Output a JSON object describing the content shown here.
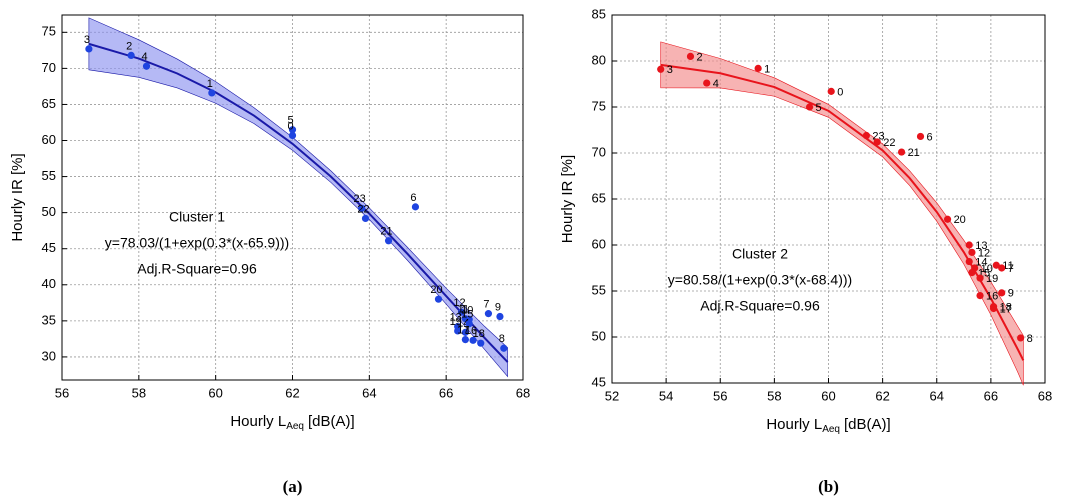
{
  "chart_data": [
    {
      "type": "scatter",
      "panel_label": "(a)",
      "xlabel": "Hourly L",
      "xlabel_sub": "Aeq",
      "xlabel_unit": "[dB(A)]",
      "ylabel": "Hourly IR [%]",
      "annotations": [
        "Cluster 1",
        "y=78.03/(1+exp(0.3*(x-65.9)))",
        "Adj.R-Square=0.96"
      ],
      "color": "#1f44e0",
      "fit_color": "#1a1aa8",
      "band_color": "#8e93f0",
      "xlim": [
        56,
        68
      ],
      "xticks": [
        56,
        58,
        60,
        62,
        64,
        66,
        68
      ],
      "ylim": [
        26.8,
        77.4
      ],
      "yticks": [
        30,
        35,
        40,
        45,
        50,
        55,
        60,
        65,
        70,
        75
      ],
      "grid": true,
      "point_labels": [
        "3",
        "2",
        "4",
        "1",
        "5",
        "0",
        "23",
        "22",
        "21",
        "6",
        "20",
        "12",
        "11",
        "10",
        "13",
        "14",
        "19",
        "15",
        "16",
        "17",
        "18",
        "7",
        "9",
        "8"
      ],
      "x": [
        56.7,
        57.8,
        58.2,
        59.9,
        62.0,
        62.0,
        63.8,
        63.9,
        64.5,
        65.2,
        65.8,
        66.4,
        66.5,
        66.6,
        66.3,
        66.5,
        66.3,
        66.6,
        66.7,
        66.5,
        66.9,
        67.1,
        67.4,
        67.5
      ],
      "values": [
        72.7,
        71.8,
        70.3,
        66.6,
        61.5,
        60.7,
        50.6,
        49.2,
        46.1,
        50.8,
        38.0,
        36.2,
        35.3,
        35.2,
        34.2,
        33.4,
        33.6,
        34.6,
        32.3,
        32.4,
        31.9,
        36.0,
        35.6,
        31.2
      ],
      "fit": {
        "x": [
          56.7,
          58,
          59,
          60,
          61,
          62,
          63,
          64,
          65,
          66,
          67,
          67.6
        ],
        "values": [
          73.4,
          71.36,
          69.29,
          66.67,
          63.44,
          59.55,
          54.99,
          49.85,
          44.25,
          38.43,
          32.63,
          29.28
        ],
        "lower": [
          69.8,
          68.76,
          67.29,
          65.17,
          62.34,
          58.65,
          54.19,
          49.05,
          43.35,
          37.33,
          31.03,
          27.28
        ],
        "upper": [
          77.0,
          73.96,
          71.29,
          68.17,
          64.54,
          60.45,
          55.79,
          50.65,
          45.15,
          39.53,
          34.23,
          31.28
        ]
      }
    },
    {
      "type": "scatter",
      "panel_label": "(b)",
      "xlabel": "Hourly L",
      "xlabel_sub": "Aeq",
      "xlabel_unit": "[dB(A)]",
      "ylabel": "Hourly IR [%]",
      "annotations": [
        "Cluster 2",
        "y=80.58/(1+exp(0.3*(x-68.4)))",
        "Adj.R-Square=0.96"
      ],
      "color": "#e8141c",
      "fit_color": "#e8141c",
      "band_color": "#f28a8a",
      "xlim": [
        52,
        68
      ],
      "xticks": [
        52,
        54,
        56,
        58,
        60,
        62,
        64,
        66,
        68
      ],
      "ylim": [
        45,
        85
      ],
      "yticks": [
        45,
        50,
        55,
        60,
        65,
        70,
        75,
        80,
        85
      ],
      "grid": true,
      "point_labels": [
        "3",
        "2",
        "4",
        "1",
        "5",
        "0",
        "23",
        "22",
        "21",
        "6",
        "20",
        "13",
        "12",
        "14",
        "10",
        "11",
        "7",
        "15",
        "19",
        "16",
        "9",
        "18",
        "17",
        "8"
      ],
      "x": [
        53.8,
        54.9,
        55.5,
        57.4,
        59.3,
        60.1,
        61.4,
        61.8,
        62.7,
        63.4,
        64.4,
        65.2,
        65.3,
        65.2,
        65.4,
        66.2,
        66.4,
        65.3,
        65.6,
        65.6,
        66.4,
        66.1,
        66.1,
        67.1
      ],
      "values": [
        79.1,
        80.5,
        77.6,
        79.2,
        75.0,
        76.7,
        71.9,
        71.2,
        70.1,
        71.8,
        62.8,
        60.0,
        59.2,
        58.2,
        57.5,
        57.8,
        57.5,
        57.0,
        56.4,
        54.5,
        54.8,
        53.3,
        53.1,
        49.9
      ],
      "fit": {
        "x": [
          53.8,
          56,
          58,
          60,
          62,
          63,
          64,
          65,
          66,
          67,
          67.2
        ],
        "values": [
          79.58,
          78.67,
          77.17,
          74.58,
          70.28,
          67.26,
          63.59,
          59.22,
          54.2,
          48.63,
          47.46
        ],
        "lower": [
          77.08,
          77.07,
          76.17,
          73.88,
          69.58,
          66.46,
          62.59,
          57.92,
          52.4,
          46.13,
          44.76
        ],
        "upper": [
          82.08,
          80.27,
          78.17,
          75.28,
          70.98,
          68.06,
          64.59,
          60.52,
          56.0,
          51.13,
          50.16
        ]
      }
    }
  ]
}
